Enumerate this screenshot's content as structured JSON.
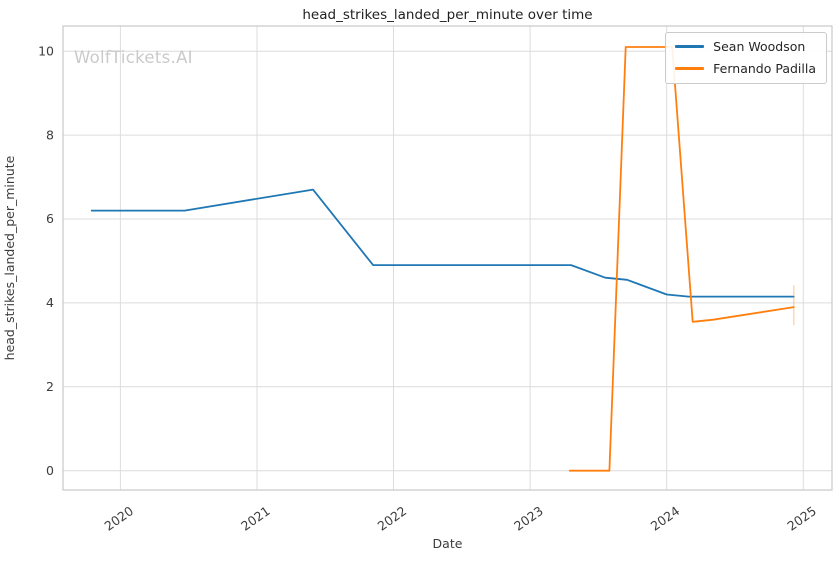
{
  "chart_data": {
    "type": "line",
    "title": "head_strikes_landed_per_minute over time",
    "xlabel": "Date",
    "ylabel": "head_strikes_landed_per_minute",
    "watermark": "WolfTickets.AI",
    "grid": true,
    "legend_position": "upper right",
    "x_ticks": [
      2020,
      2021,
      2022,
      2023,
      2024,
      2025
    ],
    "y_ticks": [
      0,
      2,
      4,
      6,
      8,
      10
    ],
    "xlim": [
      2019.58,
      2025.21
    ],
    "ylim": [
      -0.46,
      10.6
    ],
    "series": [
      {
        "name": "Sean Woodson",
        "color": "#1f77b4",
        "points": [
          [
            2019.79,
            6.2
          ],
          [
            2020.47,
            6.2
          ],
          [
            2021.41,
            6.7
          ],
          [
            2021.85,
            4.9
          ],
          [
            2023.3,
            4.9
          ],
          [
            2023.55,
            4.6
          ],
          [
            2023.71,
            4.55
          ],
          [
            2024.0,
            4.2
          ],
          [
            2024.16,
            4.15
          ],
          [
            2024.93,
            4.15
          ]
        ]
      },
      {
        "name": "Fernando Padilla",
        "color": "#ff7f0e",
        "points": [
          [
            2023.29,
            0.0
          ],
          [
            2023.58,
            0.0
          ],
          [
            2023.7,
            10.1
          ],
          [
            2024.04,
            10.1
          ],
          [
            2024.19,
            3.55
          ],
          [
            2024.34,
            3.6
          ],
          [
            2024.93,
            3.9
          ]
        ]
      }
    ],
    "annotations": {
      "end_tick": {
        "x": 2024.93,
        "y1": 3.47,
        "y2": 4.42,
        "color": "#ff7f0e",
        "opacity": 0.3
      }
    },
    "colors": {
      "grid": "#dcdcdc",
      "spine": "#c9c9c9",
      "tick_label": "#3d3d3d",
      "title": "#1f1f1f",
      "watermark": "#cacaca"
    }
  }
}
